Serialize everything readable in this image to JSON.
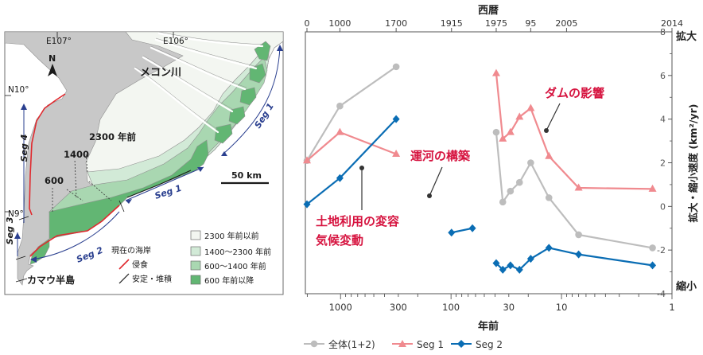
{
  "map": {
    "lon_labels": [
      "E107°",
      "E106°"
    ],
    "lat_labels": [
      "N10°",
      "N9°"
    ],
    "north": "N",
    "river": "メコン川",
    "scale": "50 km",
    "age_labels": [
      "2300 年前",
      "1400",
      "600"
    ],
    "segments": [
      "Seg 1",
      "Seg 1",
      "Seg 2",
      "Seg 3",
      "Seg 4"
    ],
    "peninsula": "カマウ半島",
    "legend_title": "現在の海岸",
    "legend_lines": [
      "侵食",
      "安定・堆積"
    ],
    "legend_areas": [
      "2300 年前以前",
      "1400〜2300 年前",
      "600〜1400 年前",
      "600 年前以降"
    ],
    "colors": {
      "area1": "#f3f6f1",
      "area2": "#d2ead7",
      "area3": "#a9d7b1",
      "area4": "#62b673",
      "erosion": "#e0292e"
    }
  },
  "chart_data": {
    "type": "line",
    "top_axis_title": "西暦",
    "top_ticks": [
      "0",
      "1000",
      "1700",
      "1915",
      "1975",
      "95",
      "2005",
      "2014"
    ],
    "xlabel": "年前",
    "x_scale": "log-reversed",
    "x_ticks": [
      "1000",
      "300",
      "100",
      "30",
      "10",
      "1"
    ],
    "xlim": [
      2014,
      1
    ],
    "ylabel": "拡大・縮小速度 (km²/yr)",
    "ylim": [
      -4,
      8
    ],
    "y_ticks": [
      "8",
      "6",
      "4",
      "2",
      "0",
      "-2",
      "-4"
    ],
    "right_labels": [
      "拡大",
      "縮小"
    ],
    "series": [
      {
        "name": "全体(1+2)",
        "color": "#bdbdbd",
        "marker": "circle",
        "segments": [
          {
            "x": [
              2014,
              1014,
              314
            ],
            "y": [
              2.1,
              4.6,
              6.4
            ]
          },
          {
            "x": [
              39,
              34,
              29,
              24,
              19,
              13,
              7,
              1.5
            ],
            "y": [
              3.4,
              0.2,
              0.7,
              1.1,
              2.0,
              0.4,
              -1.3,
              -1.9
            ]
          }
        ]
      },
      {
        "name": "Seg 1",
        "color": "#f08a8f",
        "marker": "triangle",
        "segments": [
          {
            "x": [
              2014,
              1014,
              314
            ],
            "y": [
              2.1,
              3.4,
              2.4
            ]
          },
          {
            "x": [
              39,
              34,
              29,
              24,
              19,
              13,
              7,
              1.5
            ],
            "y": [
              6.1,
              3.1,
              3.4,
              4.1,
              4.5,
              2.3,
              0.85,
              0.8
            ]
          }
        ]
      },
      {
        "name": "Seg 2",
        "color": "#0a6db4",
        "marker": "diamond",
        "segments": [
          {
            "x": [
              2014,
              1014,
              314
            ],
            "y": [
              0.1,
              1.3,
              4.0
            ]
          },
          {
            "x": [
              99,
              64
            ],
            "y": [
              -1.2,
              -1.0
            ]
          },
          {
            "x": [
              39,
              34,
              29,
              24,
              19,
              13,
              7,
              1.5
            ],
            "y": [
              -2.6,
              -2.9,
              -2.7,
              -2.9,
              -2.4,
              -1.9,
              -2.2,
              -2.7
            ]
          }
        ]
      }
    ],
    "annotations": [
      {
        "text": "ダムの影響",
        "color": "#d6133f"
      },
      {
        "text": "運河の構築",
        "color": "#d6133f"
      },
      {
        "text": "土地利用の変容",
        "color": "#d6133f"
      },
      {
        "text": "気候変動",
        "color": "#d6133f"
      }
    ]
  }
}
